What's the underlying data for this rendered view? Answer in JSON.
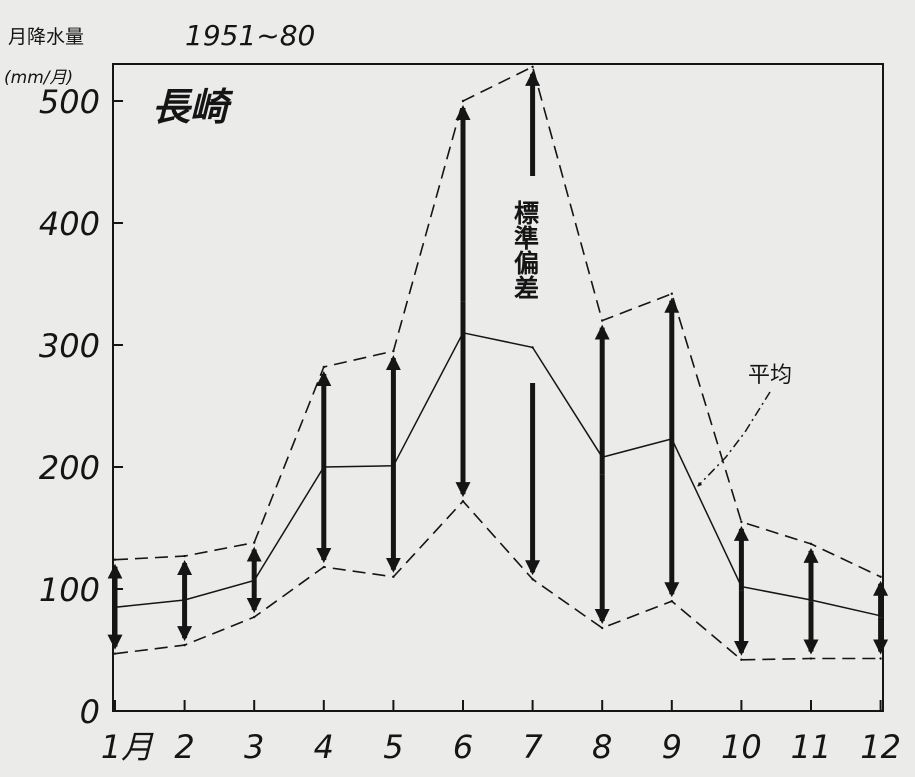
{
  "chart_data": {
    "type": "line",
    "y_axis_title": "月降水量",
    "y_axis_unit": "(mm/月)",
    "period_label": "1951~80",
    "station_label": "長崎",
    "categories": [
      "1月",
      "2",
      "3",
      "4",
      "5",
      "6",
      "7",
      "8",
      "9",
      "10",
      "11",
      "12"
    ],
    "y_ticks": [
      "0",
      "100",
      "200",
      "300",
      "400",
      "500"
    ],
    "ylim": [
      0,
      530
    ],
    "grid": false,
    "series": [
      {
        "name": "平均",
        "style": "solid",
        "values": [
          85,
          91,
          107,
          200,
          201,
          310,
          298,
          208,
          223,
          102,
          91,
          78
        ]
      },
      {
        "style": "dashed",
        "values": [
          124,
          127,
          138,
          282,
          295,
          500,
          528,
          320,
          342,
          155,
          137,
          110
        ]
      },
      {
        "style": "dashed",
        "values": [
          47,
          54,
          77,
          118,
          110,
          172,
          108,
          68,
          90,
          42,
          43,
          43
        ]
      }
    ],
    "annotations": {
      "std_dev": "標準偏差",
      "mean": "平均"
    },
    "colors": {
      "background": "#ebebea",
      "ink": "#151515"
    }
  }
}
